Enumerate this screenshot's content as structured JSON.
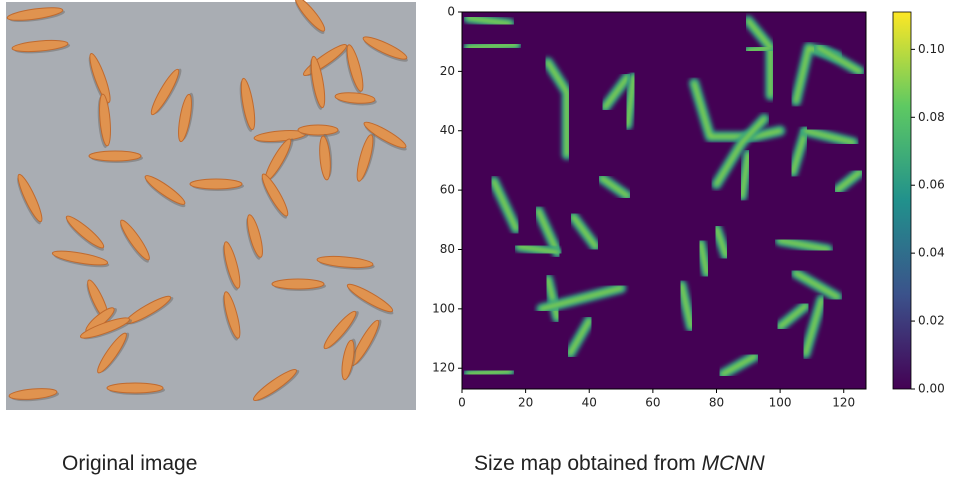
{
  "left_panel": {
    "caption": "Original image"
  },
  "right_panel": {
    "type": "heatmap",
    "caption": "Size map obtained from",
    "caption_method": "MCNN",
    "xlim": [
      0,
      127
    ],
    "ylim": [
      127,
      0
    ],
    "xticks": [
      0,
      20,
      40,
      60,
      80,
      100,
      120
    ],
    "yticks": [
      0,
      20,
      40,
      60,
      80,
      100,
      120
    ],
    "colorbar": {
      "lim": [
        0,
        0.111
      ],
      "ticks": [
        {
          "value": 0,
          "label": "0.00"
        },
        {
          "value": 0.02,
          "label": "0.02"
        },
        {
          "value": 0.04,
          "label": "0.04"
        },
        {
          "value": 0.06,
          "label": "0.06"
        },
        {
          "value": 0.08,
          "label": "0.08"
        },
        {
          "value": 0.1,
          "label": "0.10"
        }
      ]
    }
  }
}
